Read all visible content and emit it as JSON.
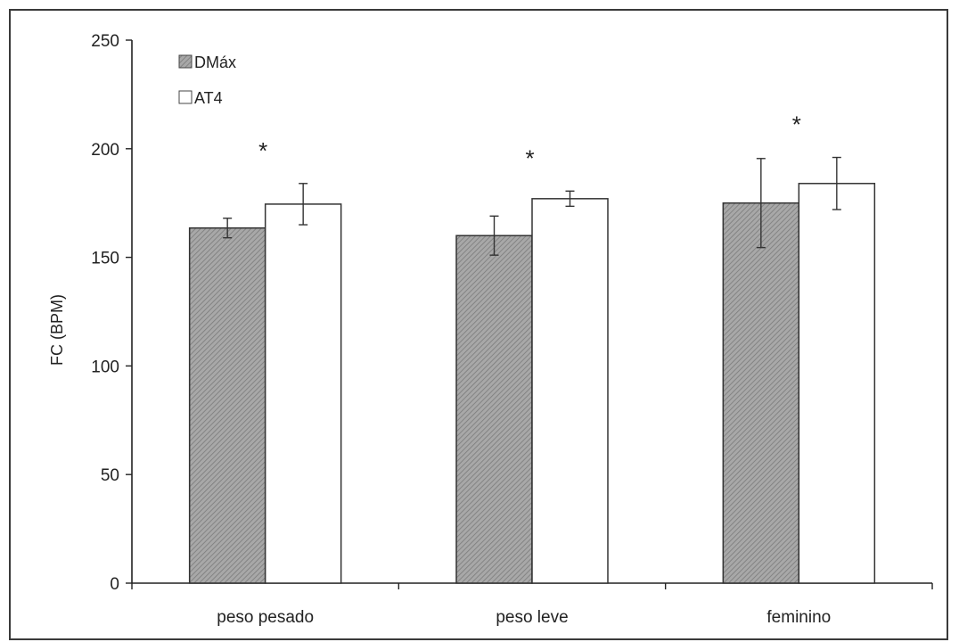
{
  "chart_data": {
    "type": "bar",
    "categories": [
      "peso pesado",
      "peso leve",
      "feminino"
    ],
    "ylabel": "FC (BPM)",
    "xlabel": "",
    "ylim": [
      0,
      250
    ],
    "yticks": [
      0,
      50,
      100,
      150,
      200,
      250
    ],
    "grid": false,
    "legend_position": "top-left",
    "series": [
      {
        "name": "DMáx",
        "values": [
          163.5,
          160,
          175
        ],
        "errors": [
          4.5,
          9,
          20.5
        ],
        "pattern": "hatched",
        "color": "#9a9a9a"
      },
      {
        "name": "AT4",
        "values": [
          174.5,
          177,
          184
        ],
        "errors": [
          9.5,
          3.5,
          12
        ],
        "pattern": "solid",
        "color": "#ffffff"
      }
    ],
    "annotations": [
      {
        "text": "*",
        "category": "peso pesado",
        "series": "AT4"
      },
      {
        "text": "*",
        "category": "peso leve",
        "series": "AT4"
      },
      {
        "text": "*",
        "category": "feminino",
        "series": "AT4"
      }
    ]
  }
}
